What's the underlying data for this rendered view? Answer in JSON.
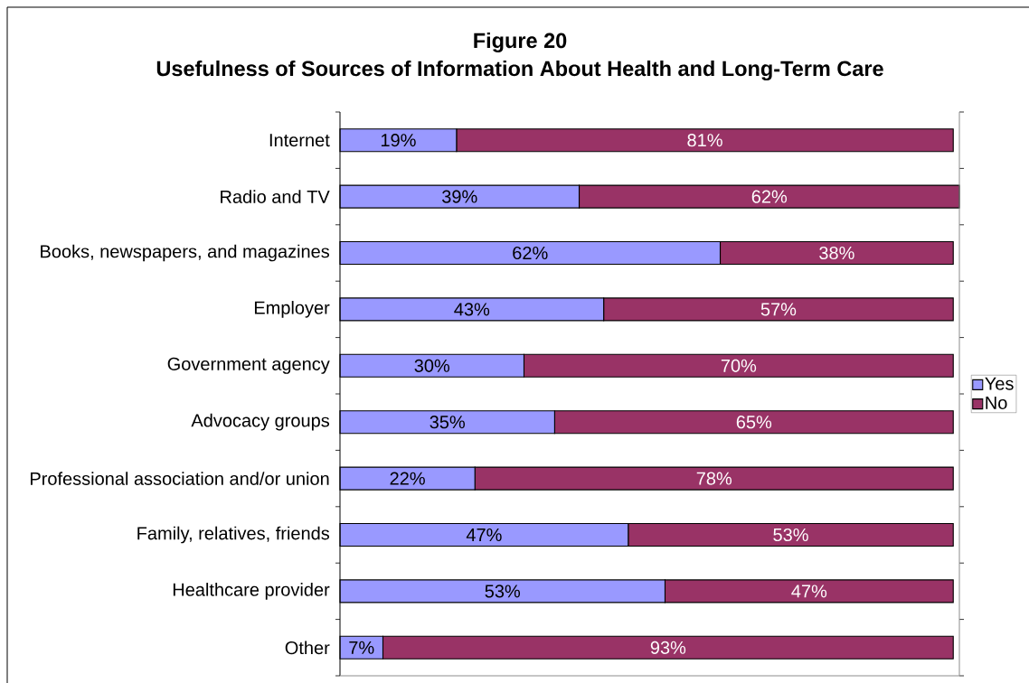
{
  "chart_data": {
    "type": "bar",
    "orientation": "horizontal",
    "stacked": true,
    "title": "Figure 20",
    "subtitle": "Usefulness of Sources of Information About Health and Long-Term Care",
    "categories": [
      "Internet",
      "Radio and TV",
      "Books, newspapers, and magazines",
      "Employer",
      "Government agency",
      "Advocacy groups",
      "Professional association and/or union",
      "Family, relatives, friends",
      "Healthcare provider",
      "Other"
    ],
    "series": [
      {
        "name": "Yes",
        "color": "#9999ff",
        "values": [
          19,
          39,
          62,
          43,
          30,
          35,
          22,
          47,
          53,
          7
        ],
        "value_labels": [
          "19%",
          "39%",
          "62%",
          "43%",
          "30%",
          "35%",
          "22%",
          "47%",
          "53%",
          "7%"
        ]
      },
      {
        "name": "No",
        "color": "#993366",
        "values": [
          81,
          62,
          38,
          57,
          70,
          65,
          78,
          53,
          47,
          93
        ],
        "value_labels": [
          "81%",
          "62%",
          "38%",
          "57%",
          "70%",
          "65%",
          "78%",
          "53%",
          "47%",
          "93%"
        ]
      }
    ],
    "legend": "right"
  }
}
